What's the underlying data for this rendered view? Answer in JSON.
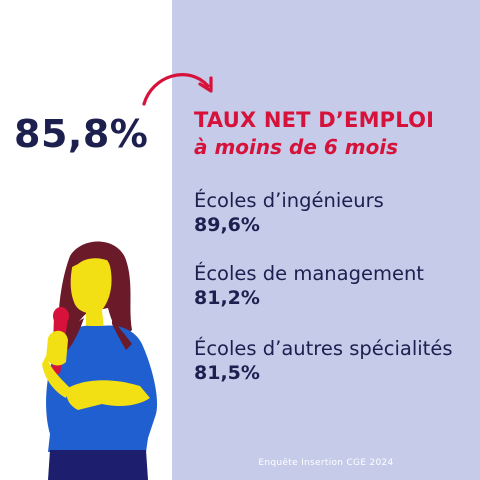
{
  "headline_stat": "85,8%",
  "title": "TAUX NET D’EMPLOI",
  "subtitle": "à moins de 6 mois",
  "stats": [
    {
      "label": "Écoles d’ingénieurs",
      "value": "89,6%"
    },
    {
      "label": "Écoles de management",
      "value": "81,2%"
    },
    {
      "label": "Écoles d’autres spécialités",
      "value": "81,5%"
    }
  ],
  "source": "Enquête Insertion CGE 2024",
  "colors": {
    "navy": "#1d1f4f",
    "accent_red": "#d6123b",
    "panel": "#c5cbe8",
    "shirt_blue": "#1f5fd0",
    "hair": "#6b1a2a",
    "skin": "#f2e014"
  },
  "icons": [
    "curved-arrow-icon",
    "woman-with-microphone-illustration"
  ]
}
